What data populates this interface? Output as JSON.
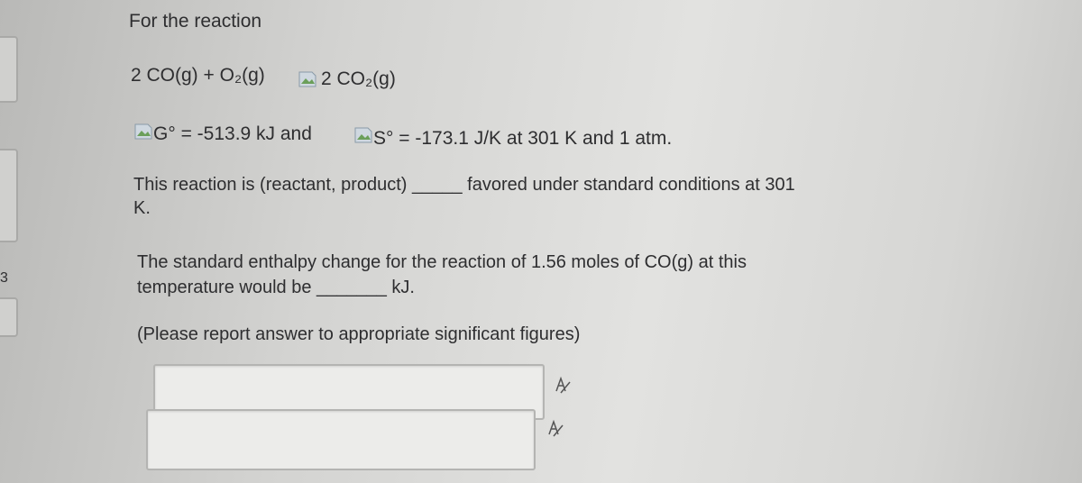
{
  "sidebar": {
    "marker": "3"
  },
  "question": {
    "intro": "For the reaction",
    "reaction_left": "2 CO(g) + O₂(g)",
    "reaction_right": "2 CO₂(g)",
    "gibbs": "G° = -513.9 kJ and",
    "entropy": "S° = -173.1 J/K at 301 K and 1 atm.",
    "favored_line1": "This reaction is (reactant, product) _____ favored under standard conditions at 301",
    "favored_line2": "K.",
    "enthalpy_line1": "The standard enthalpy change for the reaction of 1.56 moles of CO(g) at this",
    "enthalpy_line2": "temperature would be _______ kJ.",
    "note": "(Please report answer to appropriate significant figures)"
  }
}
